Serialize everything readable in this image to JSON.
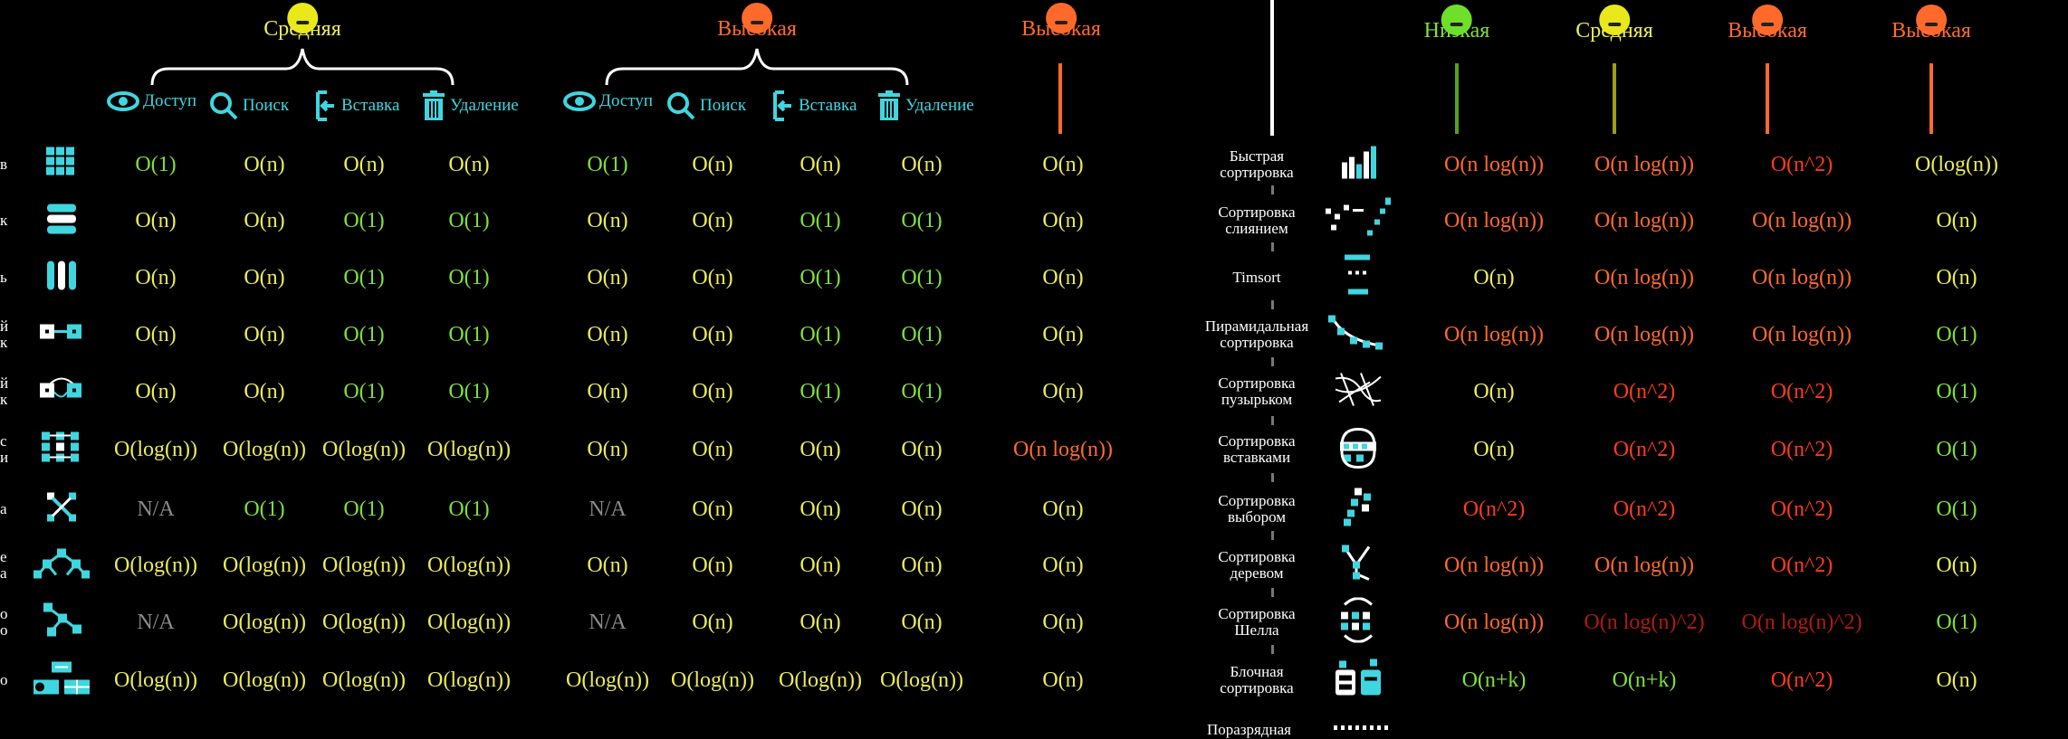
{
  "colors": {
    "green": "#7ee03a",
    "yellow": "#ecec5a",
    "orange": "#ff6a2a",
    "red": "#ff3b1a",
    "cyan": "#3fd6e0",
    "gray": "#8a8a8a"
  },
  "left_table": {
    "group_headers": [
      {
        "label": "Средняя",
        "color": "yellow"
      },
      {
        "label": "Высокая",
        "color": "orange"
      },
      {
        "label": "Высокая",
        "color": "orange"
      }
    ],
    "operations": [
      "Доступ",
      "Поиск",
      "Вставка",
      "Удаление",
      "Доступ",
      "Поиск",
      "Вставка",
      "Удаление"
    ],
    "operation_icons": [
      "eye-icon",
      "search-icon",
      "insert-icon",
      "trash-icon",
      "eye-icon",
      "search-icon",
      "insert-icon",
      "trash-icon"
    ],
    "row_label_fragments": [
      "в",
      "к",
      "ь",
      "й\nк",
      "й\nк",
      "с\nи",
      "а",
      "е\nа",
      "о\nо",
      "о"
    ],
    "row_icons": [
      "array-icon",
      "stack-icon",
      "queue-icon",
      "linked-list-icon",
      "doubly-linked-list-icon",
      "skip-list-icon",
      "hash-table-icon",
      "binary-tree-icon",
      "cartesian-tree-icon",
      "b-tree-icon"
    ],
    "rows": [
      [
        [
          "O(1)",
          "green"
        ],
        [
          "O(n)",
          "yellow"
        ],
        [
          "O(n)",
          "yellow"
        ],
        [
          "O(n)",
          "yellow"
        ],
        [
          "O(1)",
          "green"
        ],
        [
          "O(n)",
          "yellow"
        ],
        [
          "O(n)",
          "yellow"
        ],
        [
          "O(n)",
          "yellow"
        ],
        [
          "O(n)",
          "yellow"
        ]
      ],
      [
        [
          "O(n)",
          "yellow"
        ],
        [
          "O(n)",
          "yellow"
        ],
        [
          "O(1)",
          "green"
        ],
        [
          "O(1)",
          "green"
        ],
        [
          "O(n)",
          "yellow"
        ],
        [
          "O(n)",
          "yellow"
        ],
        [
          "O(1)",
          "green"
        ],
        [
          "O(1)",
          "green"
        ],
        [
          "O(n)",
          "yellow"
        ]
      ],
      [
        [
          "O(n)",
          "yellow"
        ],
        [
          "O(n)",
          "yellow"
        ],
        [
          "O(1)",
          "green"
        ],
        [
          "O(1)",
          "green"
        ],
        [
          "O(n)",
          "yellow"
        ],
        [
          "O(n)",
          "yellow"
        ],
        [
          "O(1)",
          "green"
        ],
        [
          "O(1)",
          "green"
        ],
        [
          "O(n)",
          "yellow"
        ]
      ],
      [
        [
          "O(n)",
          "yellow"
        ],
        [
          "O(n)",
          "yellow"
        ],
        [
          "O(1)",
          "green"
        ],
        [
          "O(1)",
          "green"
        ],
        [
          "O(n)",
          "yellow"
        ],
        [
          "O(n)",
          "yellow"
        ],
        [
          "O(1)",
          "green"
        ],
        [
          "O(1)",
          "green"
        ],
        [
          "O(n)",
          "yellow"
        ]
      ],
      [
        [
          "O(n)",
          "yellow"
        ],
        [
          "O(n)",
          "yellow"
        ],
        [
          "O(1)",
          "green"
        ],
        [
          "O(1)",
          "green"
        ],
        [
          "O(n)",
          "yellow"
        ],
        [
          "O(n)",
          "yellow"
        ],
        [
          "O(1)",
          "green"
        ],
        [
          "O(1)",
          "green"
        ],
        [
          "O(n)",
          "yellow"
        ]
      ],
      [
        [
          "O(log(n))",
          "yellow"
        ],
        [
          "O(log(n))",
          "yellow"
        ],
        [
          "O(log(n))",
          "yellow"
        ],
        [
          "O(log(n))",
          "yellow"
        ],
        [
          "O(n)",
          "yellow"
        ],
        [
          "O(n)",
          "yellow"
        ],
        [
          "O(n)",
          "yellow"
        ],
        [
          "O(n)",
          "yellow"
        ],
        [
          "O(n log(n))",
          "orange"
        ]
      ],
      [
        [
          "N/A",
          "gray"
        ],
        [
          "O(1)",
          "green"
        ],
        [
          "O(1)",
          "green"
        ],
        [
          "O(1)",
          "green"
        ],
        [
          "N/A",
          "gray"
        ],
        [
          "O(n)",
          "yellow"
        ],
        [
          "O(n)",
          "yellow"
        ],
        [
          "O(n)",
          "yellow"
        ],
        [
          "O(n)",
          "yellow"
        ]
      ],
      [
        [
          "O(log(n))",
          "yellow"
        ],
        [
          "O(log(n))",
          "yellow"
        ],
        [
          "O(log(n))",
          "yellow"
        ],
        [
          "O(log(n))",
          "yellow"
        ],
        [
          "O(n)",
          "yellow"
        ],
        [
          "O(n)",
          "yellow"
        ],
        [
          "O(n)",
          "yellow"
        ],
        [
          "O(n)",
          "yellow"
        ],
        [
          "O(n)",
          "yellow"
        ]
      ],
      [
        [
          "N/A",
          "gray"
        ],
        [
          "O(log(n))",
          "yellow"
        ],
        [
          "O(log(n))",
          "yellow"
        ],
        [
          "O(log(n))",
          "yellow"
        ],
        [
          "N/A",
          "gray"
        ],
        [
          "O(n)",
          "yellow"
        ],
        [
          "O(n)",
          "yellow"
        ],
        [
          "O(n)",
          "yellow"
        ],
        [
          "O(n)",
          "yellow"
        ]
      ],
      [
        [
          "O(log(n))",
          "yellow"
        ],
        [
          "O(log(n))",
          "yellow"
        ],
        [
          "O(log(n))",
          "yellow"
        ],
        [
          "O(log(n))",
          "yellow"
        ],
        [
          "O(log(n))",
          "yellow"
        ],
        [
          "O(log(n))",
          "yellow"
        ],
        [
          "O(log(n))",
          "yellow"
        ],
        [
          "O(log(n))",
          "yellow"
        ],
        [
          "O(n)",
          "yellow"
        ]
      ]
    ]
  },
  "right_table": {
    "headers": [
      {
        "label": "Низкая",
        "color": "green"
      },
      {
        "label": "Средняя",
        "color": "yellow"
      },
      {
        "label": "Высокая",
        "color": "orange"
      },
      {
        "label": "Высокая",
        "color": "orange"
      }
    ],
    "rows": [
      {
        "label": "Быстрая\nсортировка",
        "icon": "quicksort-icon",
        "cells": [
          [
            "O(n log(n))",
            "orange"
          ],
          [
            "O(n log(n))",
            "orange"
          ],
          [
            "O(n^2)",
            "red"
          ],
          [
            "O(log(n))",
            "yellow"
          ]
        ]
      },
      {
        "label": "Сортировка\nслиянием",
        "icon": "mergesort-icon",
        "cells": [
          [
            "O(n log(n))",
            "orange"
          ],
          [
            "O(n log(n))",
            "orange"
          ],
          [
            "O(n log(n))",
            "orange"
          ],
          [
            "O(n)",
            "yellow"
          ]
        ]
      },
      {
        "label": "Timsort",
        "icon": "timsort-icon",
        "cells": [
          [
            "O(n)",
            "yellow"
          ],
          [
            "O(n log(n))",
            "orange"
          ],
          [
            "O(n log(n))",
            "orange"
          ],
          [
            "O(n)",
            "yellow"
          ]
        ]
      },
      {
        "label": "Пирамидальная\nсортировка",
        "icon": "heapsort-icon",
        "cells": [
          [
            "O(n log(n))",
            "orange"
          ],
          [
            "O(n log(n))",
            "orange"
          ],
          [
            "O(n log(n))",
            "orange"
          ],
          [
            "O(1)",
            "green"
          ]
        ]
      },
      {
        "label": "Сортировка\nпузырьком",
        "icon": "bubblesort-icon",
        "cells": [
          [
            "O(n)",
            "yellow"
          ],
          [
            "O(n^2)",
            "red"
          ],
          [
            "O(n^2)",
            "red"
          ],
          [
            "O(1)",
            "green"
          ]
        ]
      },
      {
        "label": "Сортировка\nвставками",
        "icon": "insertionsort-icon",
        "cells": [
          [
            "O(n)",
            "yellow"
          ],
          [
            "O(n^2)",
            "red"
          ],
          [
            "O(n^2)",
            "red"
          ],
          [
            "O(1)",
            "green"
          ]
        ]
      },
      {
        "label": "Сортировка\nвыбором",
        "icon": "selectionsort-icon",
        "cells": [
          [
            "O(n^2)",
            "red"
          ],
          [
            "O(n^2)",
            "red"
          ],
          [
            "O(n^2)",
            "red"
          ],
          [
            "O(1)",
            "green"
          ]
        ]
      },
      {
        "label": "Сортировка\nдеревом",
        "icon": "treesort-icon",
        "cells": [
          [
            "O(n log(n))",
            "orange"
          ],
          [
            "O(n log(n))",
            "orange"
          ],
          [
            "O(n^2)",
            "red"
          ],
          [
            "O(n)",
            "yellow"
          ]
        ]
      },
      {
        "label": "Сортировка\nШелла",
        "icon": "shellsort-icon",
        "cells": [
          [
            "O(n log(n))",
            "orange"
          ],
          [
            "O(n log(n)^2)",
            "darkred"
          ],
          [
            "O(n log(n)^2)",
            "darkred"
          ],
          [
            "O(1)",
            "green"
          ]
        ]
      },
      {
        "label": "Блочная\nсортировка",
        "icon": "bucketsort-icon",
        "cells": [
          [
            "O(n+k)",
            "green"
          ],
          [
            "O(n+k)",
            "green"
          ],
          [
            "O(n^2)",
            "red"
          ],
          [
            "O(n)",
            "yellow"
          ]
        ]
      }
    ],
    "cut_off_label": "Поразрядная"
  }
}
